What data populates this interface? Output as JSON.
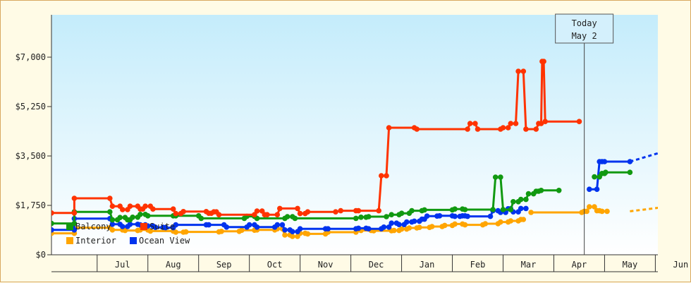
{
  "chart_data": {
    "type": "line",
    "title": "",
    "xlabel": "",
    "ylabel": "",
    "ylim": [
      0,
      8500
    ],
    "y_ticks": [
      {
        "value": 0,
        "label": "$0"
      },
      {
        "value": 1750,
        "label": "$1,750"
      },
      {
        "value": 3500,
        "label": "$3,500"
      },
      {
        "value": 5250,
        "label": "$5,250"
      },
      {
        "value": 7000,
        "label": "$7,000"
      }
    ],
    "x_axis_unit": "month index (Jun = 0)",
    "xlim": [
      -0.4,
      11.55
    ],
    "month_labels": [
      "Jul",
      "Aug",
      "Sep",
      "Oct",
      "Nov",
      "Dec",
      "Jan",
      "Feb",
      "Mar",
      "Apr",
      "May",
      "Jun"
    ],
    "grid": false,
    "background": "sky gradient",
    "legend": {
      "placement": "bottom-left",
      "entries": [
        {
          "name": "Balcony",
          "color": "#119911"
        },
        {
          "name": "Suite",
          "color": "#ff3300"
        },
        {
          "name": "Interior",
          "color": "#ffa500"
        },
        {
          "name": "Ocean View",
          "color": "#0033ee"
        }
      ]
    },
    "today": {
      "x": 10.1,
      "line1": "Today",
      "line2": "May 2"
    },
    "series": [
      {
        "name": "Suite",
        "color": "#ff3300",
        "points": [
          [
            -0.4,
            1480
          ],
          [
            0.05,
            1480
          ],
          [
            0.05,
            2000
          ],
          [
            0.75,
            2000
          ],
          [
            0.8,
            1720
          ],
          [
            0.95,
            1720
          ],
          [
            1.0,
            1600
          ],
          [
            1.1,
            1600
          ],
          [
            1.15,
            1720
          ],
          [
            1.3,
            1720
          ],
          [
            1.35,
            1620
          ],
          [
            1.4,
            1620
          ],
          [
            1.45,
            1720
          ],
          [
            1.55,
            1720
          ],
          [
            1.6,
            1620
          ],
          [
            2.0,
            1620
          ],
          [
            2.05,
            1460
          ],
          [
            2.15,
            1460
          ],
          [
            2.2,
            1530
          ],
          [
            2.65,
            1530
          ],
          [
            2.7,
            1470
          ],
          [
            2.75,
            1470
          ],
          [
            2.8,
            1520
          ],
          [
            2.85,
            1520
          ],
          [
            2.9,
            1420
          ],
          [
            3.6,
            1420
          ],
          [
            3.65,
            1550
          ],
          [
            3.75,
            1550
          ],
          [
            3.8,
            1420
          ],
          [
            3.85,
            1420
          ],
          [
            4.05,
            1420
          ],
          [
            4.1,
            1640
          ],
          [
            4.45,
            1640
          ],
          [
            4.5,
            1460
          ],
          [
            4.6,
            1460
          ],
          [
            4.65,
            1520
          ],
          [
            5.2,
            1520
          ],
          [
            5.3,
            1560
          ],
          [
            5.6,
            1560
          ],
          [
            5.65,
            1560
          ],
          [
            6.05,
            1560
          ],
          [
            6.1,
            2800
          ],
          [
            6.2,
            2800
          ],
          [
            6.25,
            4500
          ],
          [
            6.75,
            4500
          ],
          [
            6.8,
            4450
          ],
          [
            7.8,
            4450
          ],
          [
            7.85,
            4650
          ],
          [
            7.95,
            4650
          ],
          [
            8.0,
            4450
          ],
          [
            8.45,
            4450
          ],
          [
            8.5,
            4500
          ],
          [
            8.6,
            4500
          ],
          [
            8.65,
            4650
          ],
          [
            8.75,
            4650
          ],
          [
            8.8,
            6500
          ],
          [
            8.9,
            6500
          ],
          [
            8.95,
            4450
          ],
          [
            9.15,
            4450
          ],
          [
            9.2,
            4650
          ],
          [
            9.25,
            4650
          ],
          [
            9.27,
            6850
          ],
          [
            9.3,
            6850
          ],
          [
            9.33,
            4720
          ],
          [
            10.0,
            4720
          ]
        ]
      },
      {
        "name": "Balcony",
        "color": "#119911",
        "points": [
          [
            -0.4,
            1110
          ],
          [
            0.05,
            1110
          ],
          [
            0.05,
            1520
          ],
          [
            0.75,
            1520
          ],
          [
            0.8,
            1240
          ],
          [
            0.9,
            1240
          ],
          [
            0.95,
            1320
          ],
          [
            1.05,
            1320
          ],
          [
            1.1,
            1240
          ],
          [
            1.15,
            1240
          ],
          [
            1.2,
            1330
          ],
          [
            1.3,
            1330
          ],
          [
            1.35,
            1430
          ],
          [
            1.45,
            1430
          ],
          [
            1.5,
            1380
          ],
          [
            2.0,
            1380
          ],
          [
            2.05,
            1380
          ],
          [
            2.5,
            1380
          ],
          [
            2.55,
            1290
          ],
          [
            3.4,
            1290
          ],
          [
            3.45,
            1360
          ],
          [
            3.6,
            1360
          ],
          [
            3.65,
            1290
          ],
          [
            4.2,
            1290
          ],
          [
            4.25,
            1350
          ],
          [
            4.35,
            1350
          ],
          [
            4.4,
            1290
          ],
          [
            5.6,
            1290
          ],
          [
            5.7,
            1330
          ],
          [
            5.8,
            1330
          ],
          [
            5.85,
            1350
          ],
          [
            6.2,
            1350
          ],
          [
            6.3,
            1420
          ],
          [
            6.45,
            1420
          ],
          [
            6.5,
            1470
          ],
          [
            6.65,
            1470
          ],
          [
            6.7,
            1560
          ],
          [
            6.9,
            1560
          ],
          [
            6.95,
            1590
          ],
          [
            7.5,
            1590
          ],
          [
            7.55,
            1620
          ],
          [
            7.7,
            1620
          ],
          [
            7.75,
            1600
          ],
          [
            8.3,
            1600
          ],
          [
            8.35,
            2750
          ],
          [
            8.45,
            2750
          ],
          [
            8.5,
            1600
          ],
          [
            8.65,
            1600
          ],
          [
            8.7,
            1880
          ],
          [
            8.8,
            1880
          ],
          [
            8.85,
            1960
          ],
          [
            8.95,
            1960
          ],
          [
            9.0,
            2160
          ],
          [
            9.1,
            2160
          ],
          [
            9.15,
            2250
          ],
          [
            9.2,
            2250
          ],
          [
            9.25,
            2280
          ],
          [
            9.6,
            2280
          ],
          null,
          [
            10.3,
            2760
          ],
          [
            10.4,
            2760
          ],
          [
            10.45,
            2880
          ],
          [
            10.5,
            2880
          ],
          [
            10.52,
            2920
          ],
          [
            11.0,
            2920
          ]
        ]
      },
      {
        "name": "Interior",
        "color": "#ffa500",
        "points": [
          [
            -0.4,
            760
          ],
          [
            0.05,
            760
          ],
          [
            0.05,
            960
          ],
          [
            0.75,
            960
          ],
          [
            0.8,
            880
          ],
          [
            1.0,
            880
          ],
          [
            1.05,
            860
          ],
          [
            1.3,
            860
          ],
          [
            1.35,
            880
          ],
          [
            1.5,
            880
          ],
          [
            1.55,
            840
          ],
          [
            2.0,
            840
          ],
          [
            2.05,
            800
          ],
          [
            2.2,
            800
          ],
          [
            2.25,
            810
          ],
          [
            2.9,
            810
          ],
          [
            2.95,
            830
          ],
          [
            3.3,
            830
          ],
          [
            3.35,
            870
          ],
          [
            3.6,
            870
          ],
          [
            3.65,
            880
          ],
          [
            4.0,
            880
          ],
          [
            4.05,
            920
          ],
          [
            4.15,
            920
          ],
          [
            4.2,
            700
          ],
          [
            4.3,
            700
          ],
          [
            4.35,
            650
          ],
          [
            4.45,
            650
          ],
          [
            4.5,
            760
          ],
          [
            4.6,
            760
          ],
          [
            4.65,
            740
          ],
          [
            5.0,
            740
          ],
          [
            5.05,
            800
          ],
          [
            5.6,
            800
          ],
          [
            5.7,
            860
          ],
          [
            5.9,
            860
          ],
          [
            5.95,
            850
          ],
          [
            6.3,
            850
          ],
          [
            6.35,
            860
          ],
          [
            6.45,
            860
          ],
          [
            6.5,
            910
          ],
          [
            6.6,
            910
          ],
          [
            6.65,
            950
          ],
          [
            6.8,
            950
          ],
          [
            6.85,
            970
          ],
          [
            7.05,
            970
          ],
          [
            7.1,
            1000
          ],
          [
            7.3,
            1000
          ],
          [
            7.35,
            1040
          ],
          [
            7.5,
            1040
          ],
          [
            7.55,
            1090
          ],
          [
            7.7,
            1090
          ],
          [
            7.75,
            1060
          ],
          [
            8.1,
            1060
          ],
          [
            8.15,
            1100
          ],
          [
            8.4,
            1100
          ],
          [
            8.45,
            1160
          ],
          [
            8.6,
            1160
          ],
          [
            8.65,
            1200
          ],
          [
            8.8,
            1200
          ],
          [
            8.85,
            1250
          ],
          [
            8.9,
            1250
          ],
          null,
          [
            9.05,
            1500
          ],
          [
            10.05,
            1500
          ],
          [
            10.1,
            1540
          ],
          [
            10.15,
            1540
          ],
          [
            10.2,
            1700
          ],
          [
            10.3,
            1700
          ],
          [
            10.35,
            1560
          ],
          [
            10.4,
            1560
          ],
          [
            10.45,
            1540
          ],
          [
            10.55,
            1540
          ]
        ]
      },
      {
        "name": "Ocean View",
        "color": "#0033ee",
        "points": [
          [
            -0.4,
            880
          ],
          [
            0.05,
            880
          ],
          [
            0.05,
            1280
          ],
          [
            0.75,
            1280
          ],
          [
            0.8,
            1080
          ],
          [
            0.95,
            1080
          ],
          [
            1.0,
            1000
          ],
          [
            1.1,
            1000
          ],
          [
            1.15,
            1080
          ],
          [
            1.3,
            1080
          ],
          [
            1.35,
            1060
          ],
          [
            1.45,
            1060
          ],
          [
            1.5,
            1020
          ],
          [
            1.6,
            1020
          ],
          [
            1.65,
            970
          ],
          [
            1.8,
            970
          ],
          [
            1.85,
            960
          ],
          [
            2.0,
            960
          ],
          [
            2.05,
            1060
          ],
          [
            2.65,
            1060
          ],
          [
            2.7,
            1060
          ],
          [
            3.0,
            1060
          ],
          [
            3.05,
            980
          ],
          [
            3.45,
            980
          ],
          [
            3.5,
            1060
          ],
          [
            3.6,
            1060
          ],
          [
            3.65,
            980
          ],
          [
            4.0,
            980
          ],
          [
            4.05,
            1060
          ],
          [
            4.15,
            1060
          ],
          [
            4.2,
            880
          ],
          [
            4.3,
            880
          ],
          [
            4.35,
            820
          ],
          [
            4.45,
            820
          ],
          [
            4.5,
            920
          ],
          [
            5.0,
            920
          ],
          [
            5.05,
            920
          ],
          [
            5.6,
            920
          ],
          [
            5.65,
            940
          ],
          [
            5.8,
            940
          ],
          [
            5.85,
            920
          ],
          [
            6.1,
            920
          ],
          [
            6.15,
            980
          ],
          [
            6.25,
            980
          ],
          [
            6.3,
            1120
          ],
          [
            6.4,
            1120
          ],
          [
            6.45,
            1070
          ],
          [
            6.55,
            1070
          ],
          [
            6.6,
            1160
          ],
          [
            6.7,
            1160
          ],
          [
            6.75,
            1190
          ],
          [
            6.85,
            1190
          ],
          [
            6.9,
            1260
          ],
          [
            6.95,
            1260
          ],
          [
            7.0,
            1370
          ],
          [
            7.2,
            1370
          ],
          [
            7.25,
            1380
          ],
          [
            7.5,
            1380
          ],
          [
            7.55,
            1360
          ],
          [
            7.65,
            1360
          ],
          [
            7.7,
            1380
          ],
          [
            7.75,
            1380
          ],
          [
            7.8,
            1360
          ],
          [
            8.25,
            1360
          ],
          [
            8.3,
            1560
          ],
          [
            8.4,
            1560
          ],
          [
            8.45,
            1500
          ],
          [
            8.55,
            1500
          ],
          [
            8.6,
            1630
          ],
          [
            8.65,
            1630
          ],
          [
            8.7,
            1520
          ],
          [
            8.8,
            1520
          ],
          [
            8.85,
            1640
          ],
          [
            8.95,
            1640
          ],
          null,
          [
            10.2,
            2320
          ],
          [
            10.35,
            2320
          ],
          [
            10.4,
            3300
          ],
          [
            10.45,
            3300
          ],
          [
            10.5,
            3300
          ],
          [
            11.0,
            3300
          ]
        ]
      }
    ],
    "forecasts": [
      {
        "name": "Ocean View",
        "color": "#0033ee",
        "from": [
          11.0,
          3300
        ],
        "to": [
          12.4,
          4050
        ]
      },
      {
        "name": "Interior",
        "color": "#ffa500",
        "from": [
          11.0,
          1540
        ],
        "to": [
          12.4,
          1850
        ]
      }
    ]
  }
}
